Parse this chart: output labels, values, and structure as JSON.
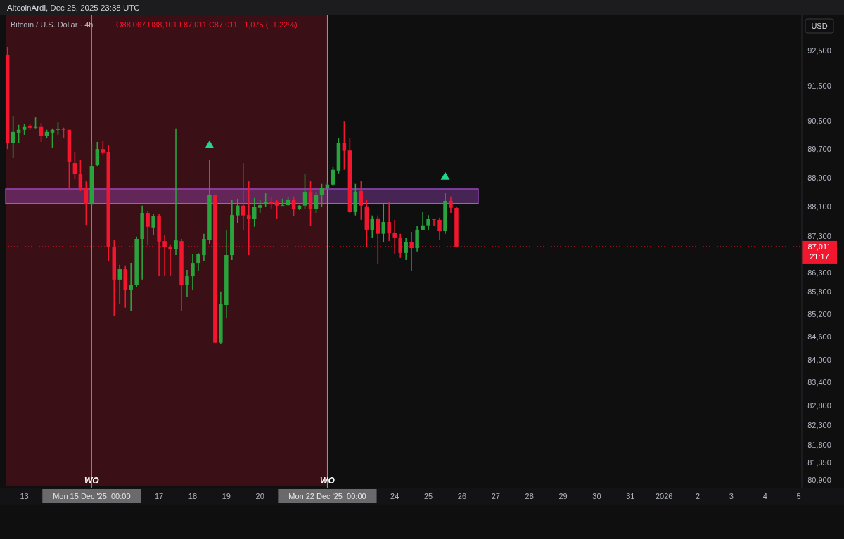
{
  "chart_data": {
    "type": "candlestick",
    "title": "Bitcoin / U.S. Dollar · 4h",
    "subtitle": "O88,067 H88,101 L87,011 C87,011 −1,075 (−1.22%)",
    "ylabel": "USD",
    "annotations": [
      "AltcoinArdi, Dec 25, 2025 23:38 UTC",
      "21:17"
    ],
    "log": true,
    "ylim": [
      80740,
      93520
    ],
    "yticks": [
      {
        "value": 92500,
        "label": "92,500"
      },
      {
        "value": 91500,
        "label": "91,500"
      },
      {
        "value": 90500,
        "label": "90,500"
      },
      {
        "value": 89700,
        "label": "89,700"
      },
      {
        "value": 88900,
        "label": "88,900"
      },
      {
        "value": 88100,
        "label": "88,100"
      },
      {
        "value": 87300,
        "label": "87,300"
      },
      {
        "value": 86300,
        "label": "86,300"
      },
      {
        "value": 85800,
        "label": "85,800"
      },
      {
        "value": 85200,
        "label": "85,200"
      },
      {
        "value": 84600,
        "label": "84,600"
      },
      {
        "value": 84000,
        "label": "84,000"
      },
      {
        "value": 83400,
        "label": "83,400"
      },
      {
        "value": 82800,
        "label": "82,800"
      },
      {
        "value": 82300,
        "label": "82,300"
      },
      {
        "value": 81800,
        "label": "81,800"
      },
      {
        "value": 81350,
        "label": "81,350"
      },
      {
        "value": 80900,
        "label": "80,900"
      }
    ],
    "xlim": [
      "2025-12-12T10:40",
      "2026-01-05T02:10"
    ],
    "xticks": [
      {
        "value": "2025-12-13",
        "label": "13"
      },
      {
        "value": "2025-12-15",
        "label": "Mon 15 Dec '25  00:00"
      },
      {
        "value": "2025-12-17",
        "label": "17"
      },
      {
        "value": "2025-12-18",
        "label": "18"
      },
      {
        "value": "2025-12-19",
        "label": "19"
      },
      {
        "value": "2025-12-20",
        "label": "20"
      },
      {
        "value": "2025-12-22",
        "label": "Mon 22 Dec '25  00:00"
      },
      {
        "value": "2025-12-24",
        "label": "24"
      },
      {
        "value": "2025-12-25",
        "label": "25"
      },
      {
        "value": "2025-12-26",
        "label": "26"
      },
      {
        "value": "2025-12-27",
        "label": "27"
      },
      {
        "value": "2025-12-28",
        "label": "28"
      },
      {
        "value": "2025-12-29",
        "label": "29"
      },
      {
        "value": "2025-12-30",
        "label": "30"
      },
      {
        "value": "2025-12-31",
        "label": "31"
      },
      {
        "value": "2026-01-01",
        "label": "2026"
      },
      {
        "value": "2026-01-02",
        "label": "2"
      },
      {
        "value": "2026-01-03",
        "label": "3"
      },
      {
        "value": "2026-01-04",
        "label": "4"
      },
      {
        "value": "2026-01-05",
        "label": "5"
      }
    ],
    "x": [
      "2025-12-12T12:00",
      "2025-12-12T16:00",
      "2025-12-12T20:00",
      "2025-12-13T00:00",
      "2025-12-13T04:00",
      "2025-12-13T08:00",
      "2025-12-13T12:00",
      "2025-12-13T16:00",
      "2025-12-13T20:00",
      "2025-12-14T00:00",
      "2025-12-14T04:00",
      "2025-12-14T08:00",
      "2025-12-14T12:00",
      "2025-12-14T16:00",
      "2025-12-14T20:00",
      "2025-12-15T00:00",
      "2025-12-15T04:00",
      "2025-12-15T08:00",
      "2025-12-15T12:00",
      "2025-12-15T16:00",
      "2025-12-15T20:00",
      "2025-12-16T00:00",
      "2025-12-16T04:00",
      "2025-12-16T08:00",
      "2025-12-16T12:00",
      "2025-12-16T16:00",
      "2025-12-16T20:00",
      "2025-12-17T00:00",
      "2025-12-17T04:00",
      "2025-12-17T08:00",
      "2025-12-17T12:00",
      "2025-12-17T16:00",
      "2025-12-17T20:00",
      "2025-12-18T00:00",
      "2025-12-18T04:00",
      "2025-12-18T08:00",
      "2025-12-18T12:00",
      "2025-12-18T16:00",
      "2025-12-18T20:00",
      "2025-12-19T00:00",
      "2025-12-19T04:00",
      "2025-12-19T08:00",
      "2025-12-19T12:00",
      "2025-12-19T16:00",
      "2025-12-19T20:00",
      "2025-12-20T00:00",
      "2025-12-20T04:00",
      "2025-12-20T08:00",
      "2025-12-20T12:00",
      "2025-12-20T16:00",
      "2025-12-20T20:00",
      "2025-12-21T00:00",
      "2025-12-21T04:00",
      "2025-12-21T08:00",
      "2025-12-21T12:00",
      "2025-12-21T16:00",
      "2025-12-21T20:00",
      "2025-12-22T00:00",
      "2025-12-22T04:00",
      "2025-12-22T08:00",
      "2025-12-22T12:00",
      "2025-12-22T16:00",
      "2025-12-22T20:00",
      "2025-12-23T00:00",
      "2025-12-23T04:00",
      "2025-12-23T08:00",
      "2025-12-23T12:00",
      "2025-12-23T16:00",
      "2025-12-23T20:00",
      "2025-12-24T00:00",
      "2025-12-24T04:00",
      "2025-12-24T08:00",
      "2025-12-24T12:00",
      "2025-12-24T16:00",
      "2025-12-24T20:00",
      "2025-12-25T00:00",
      "2025-12-25T04:00",
      "2025-12-25T08:00",
      "2025-12-25T12:00",
      "2025-12-25T16:00",
      "2025-12-25T20:00"
    ],
    "ohlc": [
      [
        92380,
        92600,
        89700,
        89880
      ],
      [
        89880,
        90630,
        89450,
        90180
      ],
      [
        90160,
        90380,
        89880,
        90240
      ],
      [
        90240,
        90400,
        90100,
        90320
      ],
      [
        90340,
        90400,
        90240,
        90300
      ],
      [
        90300,
        90590,
        90280,
        90320
      ],
      [
        90320,
        90430,
        89900,
        90060
      ],
      [
        90060,
        90240,
        90000,
        90180
      ],
      [
        90160,
        90280,
        89740,
        90240
      ],
      [
        90240,
        90450,
        90100,
        90260
      ],
      [
        90260,
        90300,
        90020,
        90240
      ],
      [
        90240,
        90240,
        88570,
        89330
      ],
      [
        89310,
        89630,
        88860,
        89000
      ],
      [
        89000,
        89390,
        88530,
        88630
      ],
      [
        88630,
        88800,
        87600,
        88160
      ],
      [
        88160,
        89880,
        88130,
        89230
      ],
      [
        89250,
        89900,
        89230,
        89700
      ],
      [
        89700,
        89940,
        89550,
        89590
      ],
      [
        89610,
        89800,
        86610,
        86990
      ],
      [
        86990,
        87180,
        85140,
        86120
      ],
      [
        86120,
        86520,
        85480,
        86400
      ],
      [
        86400,
        86500,
        85370,
        85840
      ],
      [
        85840,
        86570,
        85270,
        85970
      ],
      [
        85970,
        87280,
        85920,
        87220
      ],
      [
        87220,
        88130,
        86120,
        87930
      ],
      [
        87930,
        87990,
        87070,
        87550
      ],
      [
        87530,
        87890,
        87320,
        87840
      ],
      [
        87840,
        87890,
        86210,
        87150
      ],
      [
        87160,
        87320,
        86210,
        86990
      ],
      [
        86990,
        87070,
        86210,
        86940
      ],
      [
        86940,
        90280,
        86780,
        87180
      ],
      [
        87160,
        87220,
        85270,
        85970
      ],
      [
        85970,
        86380,
        85650,
        86210
      ],
      [
        86210,
        86800,
        85840,
        86570
      ],
      [
        86570,
        86840,
        86360,
        86800
      ],
      [
        86780,
        87360,
        86610,
        87220
      ],
      [
        87200,
        89390,
        87090,
        88420
      ],
      [
        88420,
        88420,
        84440,
        84440
      ],
      [
        84440,
        85800,
        84400,
        85460
      ],
      [
        85440,
        87470,
        85090,
        86780
      ],
      [
        86780,
        88300,
        86650,
        87870
      ],
      [
        87860,
        88320,
        87660,
        88130
      ],
      [
        88130,
        89310,
        87450,
        87860
      ],
      [
        87870,
        88800,
        86780,
        87760
      ],
      [
        87760,
        88340,
        87550,
        88090
      ],
      [
        88070,
        88280,
        87930,
        88140
      ],
      [
        88160,
        88470,
        88090,
        88220
      ],
      [
        88220,
        88360,
        88050,
        88160
      ],
      [
        88220,
        88280,
        87760,
        88130
      ],
      [
        88130,
        88320,
        88130,
        88140
      ],
      [
        88140,
        88380,
        88130,
        88300
      ],
      [
        88300,
        88380,
        87840,
        88030
      ],
      [
        88030,
        88140,
        88010,
        88130
      ],
      [
        88130,
        89000,
        88050,
        88510
      ],
      [
        88510,
        88820,
        87570,
        88030
      ],
      [
        88030,
        88510,
        87930,
        88430
      ],
      [
        88430,
        88730,
        88090,
        88610
      ],
      [
        88610,
        88770,
        88570,
        88710
      ],
      [
        88710,
        89200,
        88670,
        89120
      ],
      [
        89100,
        90000,
        89020,
        89880
      ],
      [
        89880,
        90490,
        89120,
        89650
      ],
      [
        89660,
        90000,
        87930,
        87950
      ],
      [
        87970,
        88730,
        87860,
        88510
      ],
      [
        88530,
        88820,
        87740,
        88130
      ],
      [
        88110,
        88280,
        86990,
        87470
      ],
      [
        87470,
        87860,
        87260,
        87780
      ],
      [
        87780,
        87860,
        86550,
        87360
      ],
      [
        87360,
        88180,
        87130,
        87680
      ],
      [
        87680,
        88240,
        87160,
        87390
      ],
      [
        87390,
        87740,
        86800,
        87260
      ],
      [
        87260,
        87360,
        86710,
        86840
      ],
      [
        86840,
        87260,
        86650,
        87130
      ],
      [
        87130,
        87410,
        86360,
        86970
      ],
      [
        86970,
        87570,
        86880,
        87470
      ],
      [
        87470,
        87950,
        87450,
        87590
      ],
      [
        87590,
        87870,
        87450,
        87760
      ],
      [
        87760,
        87760,
        87570,
        87740
      ],
      [
        87740,
        87800,
        87180,
        87430
      ],
      [
        87430,
        88490,
        87360,
        88260
      ],
      [
        88260,
        88380,
        87930,
        88070
      ],
      [
        88067,
        88101,
        87011,
        87011
      ]
    ],
    "series": [
      {
        "type": "scatter",
        "marker": "triangle",
        "color": "#22d68c",
        "x": [
          "2025-12-18T12:00",
          "2025-12-25T12:00"
        ],
        "values": [
          89800,
          88920
        ]
      }
    ],
    "ref_lines": [
      {
        "axis": "x",
        "value": "2025-12-15",
        "label": "WO",
        "color": "#9a9a9a"
      },
      {
        "axis": "x",
        "value": "2025-12-22",
        "label": "WO",
        "color": "#9a9a9a"
      },
      {
        "axis": "y",
        "value": 87011,
        "label": "87,011",
        "color": "#f2172e",
        "line_style": "dotted"
      }
    ],
    "bands": [
      {
        "axis": "x",
        "from": "2025-12-12T10:40",
        "to": "2025-12-15",
        "color": "#4a1118"
      },
      {
        "axis": "x",
        "from": "2025-12-15",
        "to": "2025-12-22",
        "color": "#4a1118"
      },
      {
        "axis": "y",
        "from": 88190,
        "to": 88590,
        "color": "#b04fd8"
      }
    ]
  }
}
